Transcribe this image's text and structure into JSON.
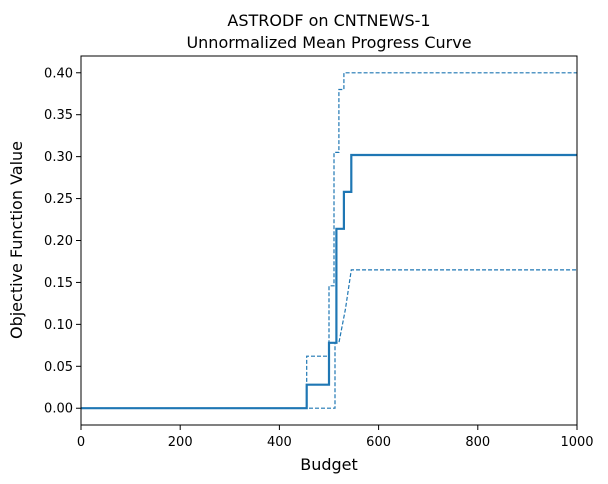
{
  "chart_data": {
    "type": "line",
    "title": "ASTRODF on CNTNEWS-1",
    "subtitle": "Unnormalized Mean Progress Curve",
    "xlabel": "Budget",
    "ylabel": "Objective Function Value",
    "xlim": [
      0,
      1000
    ],
    "ylim": [
      -0.02,
      0.42
    ],
    "xticks": [
      0,
      200,
      400,
      600,
      800,
      1000
    ],
    "xtick_labels": [
      "0",
      "200",
      "400",
      "600",
      "800",
      "1000"
    ],
    "yticks": [
      0.0,
      0.05,
      0.1,
      0.15,
      0.2,
      0.25,
      0.3,
      0.35,
      0.4
    ],
    "ytick_labels": [
      "0.00",
      "0.05",
      "0.10",
      "0.15",
      "0.20",
      "0.25",
      "0.30",
      "0.35",
      "0.40"
    ],
    "grid": false,
    "colors": {
      "series": "#1f77b4"
    },
    "series": [
      {
        "style": "solid",
        "x": [
          0,
          455,
          455,
          500,
          500,
          515,
          515,
          530,
          530,
          545,
          545,
          1000
        ],
        "y": [
          0,
          0,
          0.028,
          0.028,
          0.078,
          0.078,
          0.214,
          0.214,
          0.258,
          0.258,
          0.302,
          0.302
        ]
      },
      {
        "style": "dashed",
        "x": [
          0,
          455,
          455,
          500,
          500,
          510,
          510,
          520,
          520,
          530,
          530,
          545,
          545,
          1000
        ],
        "y": [
          0,
          0,
          0.062,
          0.062,
          0.146,
          0.146,
          0.305,
          0.305,
          0.38,
          0.38,
          0.4,
          0.4,
          0.4,
          0.4
        ]
      },
      {
        "style": "dashed",
        "x": [
          0,
          512,
          512,
          520,
          520,
          533,
          533,
          545,
          545,
          1000
        ],
        "y": [
          0,
          0,
          0.078,
          0.078,
          0.078,
          0.118,
          0.118,
          0.165,
          0.165,
          0.165
        ]
      }
    ]
  }
}
